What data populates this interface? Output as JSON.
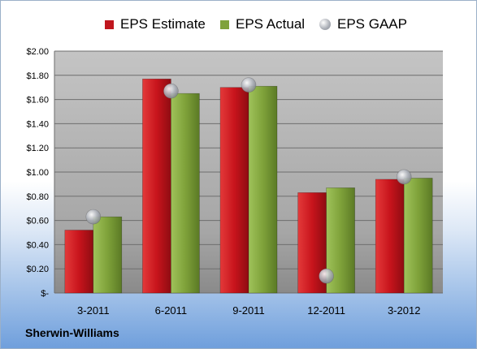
{
  "chart_data": {
    "type": "bar",
    "categories": [
      "3-2011",
      "6-2011",
      "9-2011",
      "12-2011",
      "3-2012"
    ],
    "series": [
      {
        "name": "EPS Estimate",
        "values": [
          0.52,
          1.77,
          1.7,
          0.83,
          0.94
        ],
        "color": "#c0161e",
        "kind": "bar"
      },
      {
        "name": "EPS Actual",
        "values": [
          0.63,
          1.65,
          1.71,
          0.87,
          0.95
        ],
        "color": "#7fa23a",
        "kind": "bar"
      },
      {
        "name": "EPS GAAP",
        "values": [
          0.63,
          1.67,
          1.72,
          0.14,
          0.96
        ],
        "color": "#b4b8c0",
        "kind": "marker"
      }
    ],
    "ylim": [
      0,
      2.0
    ],
    "yticks": [
      0,
      0.2,
      0.4,
      0.6,
      0.8,
      1.0,
      1.2,
      1.4,
      1.6,
      1.8,
      2.0
    ],
    "ytick_labels": [
      "$-",
      "$0.20",
      "$0.40",
      "$0.60",
      "$0.80",
      "$1.00",
      "$1.20",
      "$1.40",
      "$1.60",
      "$1.80",
      "$2.00"
    ],
    "grid": true,
    "legend": "top"
  },
  "legend": {
    "estimate": "EPS Estimate",
    "actual": "EPS Actual",
    "gaap": "EPS GAAP"
  },
  "company": "Sherwin-Williams"
}
